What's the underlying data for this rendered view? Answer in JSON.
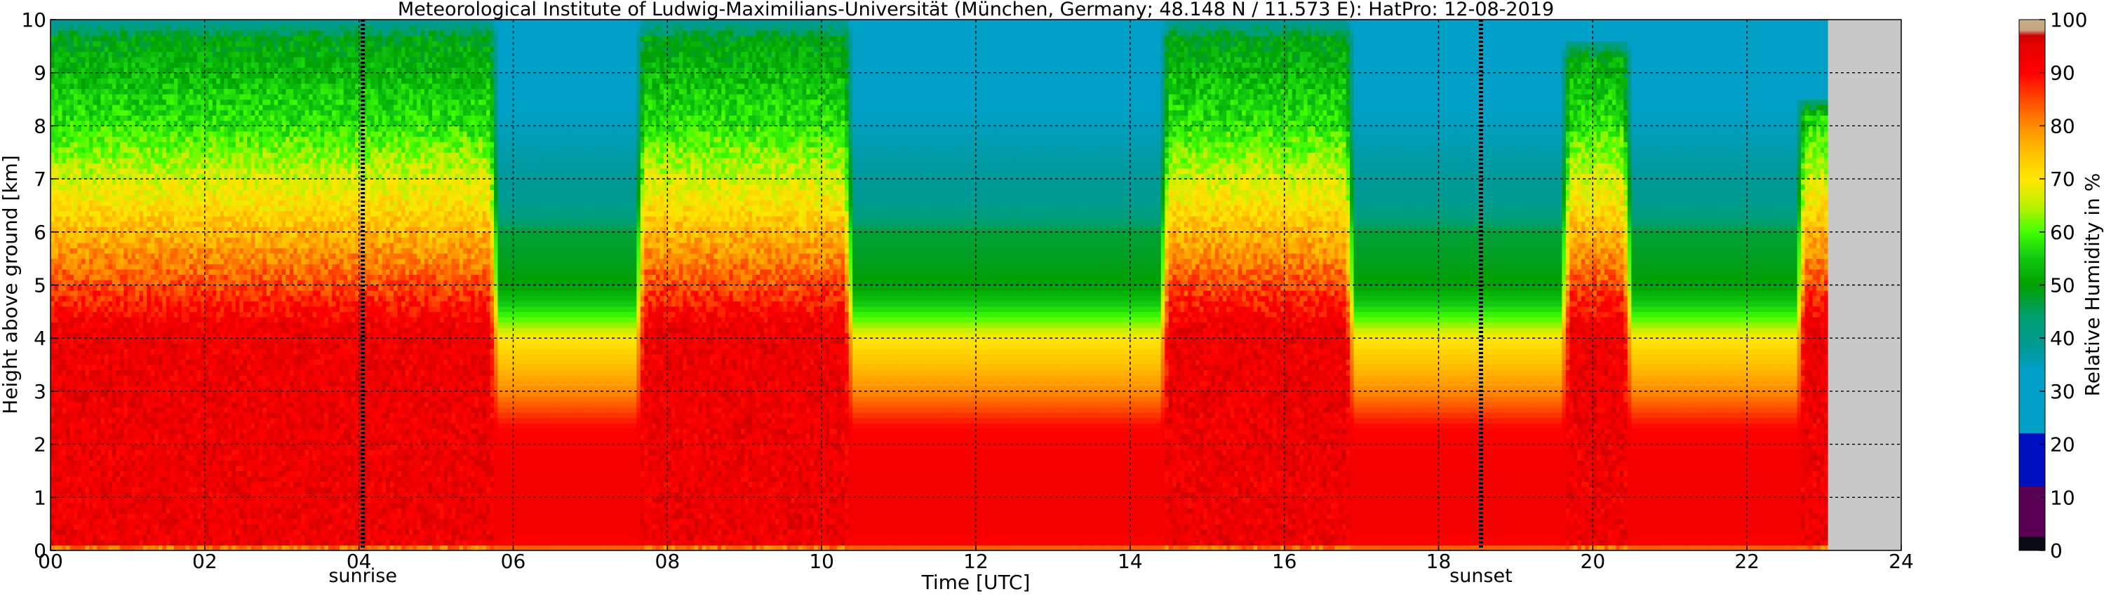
{
  "chart_data": {
    "type": "heatmap",
    "title": "Meteorological Institute of Ludwig-Maximilians-Universität (München, Germany; 48.148 N / 11.573 E):    HatPro: 12-08-2019",
    "xlabel": "Time [UTC]",
    "ylabel": "Height above ground [km]",
    "xlim": [
      0,
      24
    ],
    "ylim": [
      0,
      10
    ],
    "x_tick_labels": [
      "00",
      "02",
      "04",
      "06",
      "08",
      "10",
      "12",
      "14",
      "16",
      "18",
      "20",
      "22",
      "24"
    ],
    "y_tick_labels": [
      "0",
      "1",
      "2",
      "3",
      "4",
      "5",
      "6",
      "7",
      "8",
      "9",
      "10"
    ],
    "grid": true,
    "data_end_hour": 23.05,
    "no_data_color": "#c8c8c8",
    "markers": [
      {
        "label": "sunrise",
        "x": 4.05
      },
      {
        "label": "sunset",
        "x": 18.55
      }
    ],
    "colorbar": {
      "label": "Relative Humidity in %",
      "min": 0,
      "max": 100,
      "tick_labels": [
        "0",
        "10",
        "20",
        "30",
        "40",
        "50",
        "60",
        "70",
        "80",
        "90",
        "100"
      ],
      "stops": [
        {
          "v": 0,
          "c": "#0a0a14"
        },
        {
          "v": 2.5,
          "c": "#0a0a14"
        },
        {
          "v": 2.6,
          "c": "#5a0055"
        },
        {
          "v": 12,
          "c": "#5a0055"
        },
        {
          "v": 12.1,
          "c": "#0010c0"
        },
        {
          "v": 22,
          "c": "#0010c0"
        },
        {
          "v": 22.1,
          "c": "#009fc7"
        },
        {
          "v": 34,
          "c": "#00a0c8"
        },
        {
          "v": 38,
          "c": "#009a98"
        },
        {
          "v": 44,
          "c": "#00a070"
        },
        {
          "v": 50,
          "c": "#00a000"
        },
        {
          "v": 55,
          "c": "#10c810"
        },
        {
          "v": 60,
          "c": "#40ff00"
        },
        {
          "v": 65,
          "c": "#c0f000"
        },
        {
          "v": 70,
          "c": "#ffe600"
        },
        {
          "v": 75,
          "c": "#ffc000"
        },
        {
          "v": 80,
          "c": "#ff8c00"
        },
        {
          "v": 85,
          "c": "#ff4800"
        },
        {
          "v": 90,
          "c": "#ff0000"
        },
        {
          "v": 95,
          "c": "#e60000"
        },
        {
          "v": 97,
          "c": "#d00000"
        },
        {
          "v": 98,
          "c": "#c8a080"
        },
        {
          "v": 100,
          "c": "#c8b08a"
        }
      ]
    },
    "clear_sky_humidity_profile": {
      "height_km": [
        0,
        0.15,
        0.35,
        1.5,
        2.3,
        3.0,
        3.6,
        4.0,
        4.3,
        4.6,
        5.0,
        5.6,
        6.0,
        6.3,
        6.6,
        8.0,
        9.0,
        10.0
      ],
      "rh_percent": [
        80,
        90,
        92,
        92,
        90,
        80,
        74,
        70,
        62,
        56,
        50,
        48,
        47,
        42,
        39,
        35,
        32,
        31
      ]
    },
    "moist_column_periods": [
      {
        "start": 0.0,
        "end": 5.7,
        "top_km": 10.0
      },
      {
        "start": 7.7,
        "end": 10.3,
        "top_km": 10.0
      },
      {
        "start": 14.5,
        "end": 16.8,
        "top_km": 10.0
      },
      {
        "start": 19.7,
        "end": 20.4,
        "top_km": 9.6
      },
      {
        "start": 22.75,
        "end": 23.05,
        "top_km": 8.5
      }
    ]
  }
}
